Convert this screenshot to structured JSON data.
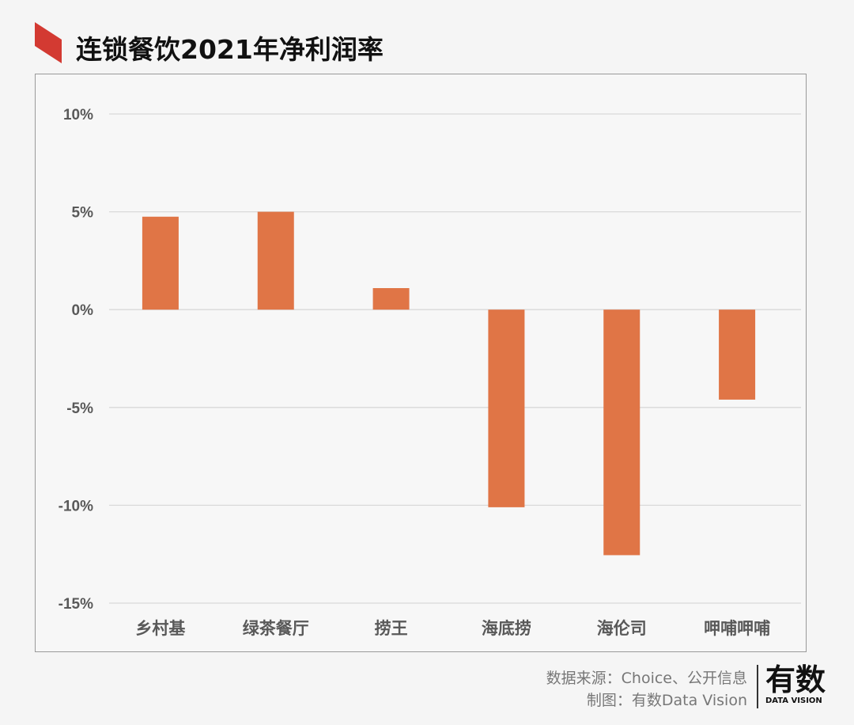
{
  "title": "连锁餐饮2021年净利润率",
  "footer": {
    "source": "数据来源：Choice、公开信息",
    "maker": "制图：有数Data Vision"
  },
  "logo": {
    "main": "有数",
    "sub": "DATA VISION"
  },
  "colors": {
    "bar": "#E07546",
    "flag": "#D33A32",
    "grid": "#d9d9d9"
  },
  "chart_data": {
    "type": "bar",
    "title": "连锁餐饮2021年净利润率",
    "categories": [
      "乡村基",
      "绿茶餐厅",
      "捞王",
      "海底捞",
      "海伦司",
      "呷哺呷哺"
    ],
    "values": [
      4.75,
      5.0,
      1.1,
      -10.1,
      -12.55,
      -4.6
    ],
    "ylim": [
      -15,
      10
    ],
    "yticks": [
      10,
      5,
      0,
      -5,
      -10,
      -15
    ],
    "ytick_labels": [
      "10%",
      "5%",
      "0%",
      "-5%",
      "-10%",
      "-15%"
    ],
    "xlabel": "",
    "ylabel": "",
    "grid": true
  }
}
